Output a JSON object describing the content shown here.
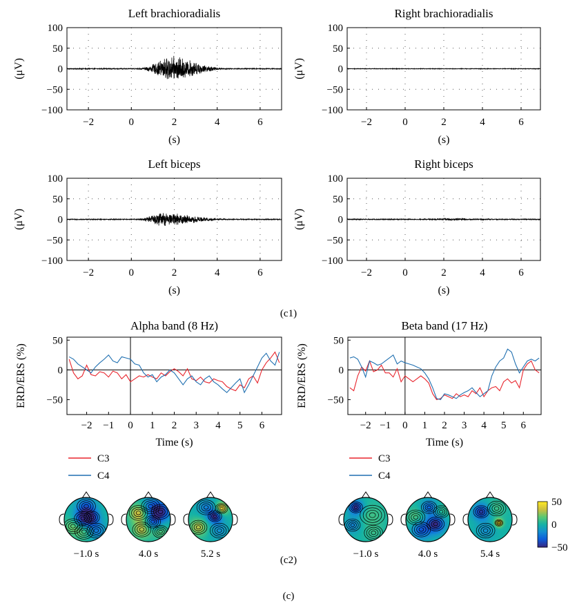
{
  "captions": {
    "c1": "(c1)",
    "c2": "(c2)",
    "c": "(c)"
  },
  "chart_data": [
    {
      "type": "line",
      "title": "Left brachioradialis",
      "xlabel": "(s)",
      "ylabel": "(μV)",
      "xlim": [
        -3,
        7
      ],
      "ylim": [
        -100,
        100
      ],
      "xticks": [
        "−2",
        "0",
        "2",
        "4",
        "6"
      ],
      "yticks": [
        "100",
        "50",
        "0",
        "−50",
        "−100"
      ],
      "grid": true,
      "series": [
        {
          "signal": "emg",
          "burst_start_s": 0.3,
          "burst_end_s": 4.5,
          "peak_s": 1.9,
          "peak_amplitude_uV": 32,
          "baseline_uV": 1
        }
      ]
    },
    {
      "type": "line",
      "title": "Right brachioradialis",
      "xlabel": "(s)",
      "ylabel": "(μV)",
      "xlim": [
        -3,
        7
      ],
      "ylim": [
        -100,
        100
      ],
      "xticks": [
        "−2",
        "0",
        "2",
        "4",
        "6"
      ],
      "yticks": [
        "100",
        "50",
        "0",
        "−50",
        "−100"
      ],
      "grid": true,
      "series": [
        {
          "signal": "emg",
          "burst_start_s": 0,
          "burst_end_s": 0,
          "peak_s": 0,
          "peak_amplitude_uV": 0,
          "baseline_uV": 0.6
        }
      ]
    },
    {
      "type": "line",
      "title": "Left biceps",
      "xlabel": "(s)",
      "ylabel": "(μV)",
      "xlim": [
        -3,
        7
      ],
      "ylim": [
        -100,
        100
      ],
      "xticks": [
        "−2",
        "0",
        "2",
        "4",
        "6"
      ],
      "yticks": [
        "100",
        "50",
        "0",
        "−50",
        "−100"
      ],
      "grid": true,
      "series": [
        {
          "signal": "emg",
          "burst_start_s": 0.2,
          "burst_end_s": 4.8,
          "peak_s": 1.4,
          "peak_amplitude_uV": 17,
          "baseline_uV": 1
        }
      ]
    },
    {
      "type": "line",
      "title": "Right biceps",
      "xlabel": "(s)",
      "ylabel": "(μV)",
      "xlim": [
        -3,
        7
      ],
      "ylim": [
        -100,
        100
      ],
      "xticks": [
        "−2",
        "0",
        "2",
        "4",
        "6"
      ],
      "yticks": [
        "100",
        "50",
        "0",
        "−50",
        "−100"
      ],
      "grid": true,
      "series": [
        {
          "signal": "emg",
          "burst_start_s": 0.5,
          "burst_end_s": 5,
          "peak_s": 2.2,
          "peak_amplitude_uV": 3,
          "baseline_uV": 1
        }
      ]
    },
    {
      "type": "line",
      "title": "Alpha band (8 Hz)",
      "xlabel": "Time (s)",
      "ylabel": "ERD/ERS (%)",
      "xlim": [
        -2.9,
        6.9
      ],
      "ylim": [
        -75,
        55
      ],
      "xticks": [
        "−2",
        "−1",
        "0",
        "1",
        "2",
        "3",
        "4",
        "5",
        "6"
      ],
      "yticks": [
        "50",
        "0",
        "−50"
      ],
      "grid": false,
      "x": [
        -2.8,
        -2.6,
        -2.4,
        -2.2,
        -2.0,
        -1.8,
        -1.6,
        -1.4,
        -1.2,
        -1.0,
        -0.8,
        -0.6,
        -0.4,
        -0.2,
        0.0,
        0.2,
        0.4,
        0.6,
        0.8,
        1.0,
        1.2,
        1.4,
        1.6,
        1.8,
        2.0,
        2.2,
        2.4,
        2.6,
        2.8,
        3.0,
        3.2,
        3.4,
        3.6,
        3.8,
        4.0,
        4.2,
        4.4,
        4.6,
        4.8,
        5.0,
        5.2,
        5.4,
        5.6,
        5.8,
        6.0,
        6.2,
        6.4,
        6.6,
        6.8
      ],
      "series": [
        {
          "name": "C3",
          "color": "#e8242c",
          "values": [
            18,
            -5,
            -15,
            -10,
            8,
            -8,
            -10,
            -3,
            -5,
            -12,
            -2,
            -5,
            -15,
            -8,
            -20,
            -15,
            -10,
            -12,
            -8,
            -12,
            -15,
            -5,
            -10,
            -3,
            2,
            -3,
            -10,
            2,
            -15,
            -18,
            -12,
            -20,
            -22,
            -15,
            -18,
            -20,
            -28,
            -32,
            -35,
            -25,
            -30,
            -15,
            -10,
            -22,
            0,
            12,
            20,
            30,
            12
          ]
        },
        {
          "name": "C4",
          "color": "#1f6fb0",
          "values": [
            22,
            18,
            10,
            5,
            0,
            -5,
            5,
            12,
            18,
            25,
            15,
            12,
            22,
            20,
            18,
            10,
            8,
            -5,
            -12,
            -8,
            -20,
            -12,
            -8,
            0,
            -5,
            -15,
            -25,
            -15,
            -10,
            -20,
            -25,
            -15,
            -10,
            -20,
            -25,
            -32,
            -38,
            -30,
            -22,
            -15,
            -38,
            -25,
            -10,
            5,
            20,
            28,
            15,
            8,
            30
          ]
        }
      ]
    },
    {
      "type": "line",
      "title": "Beta band (17 Hz)",
      "xlabel": "Time (s)",
      "ylabel": "ERD/ERS (%)",
      "xlim": [
        -2.9,
        6.9
      ],
      "ylim": [
        -75,
        55
      ],
      "xticks": [
        "−2",
        "−1",
        "0",
        "1",
        "2",
        "3",
        "4",
        "5",
        "6"
      ],
      "yticks": [
        "50",
        "0",
        "−50"
      ],
      "grid": false,
      "x": [
        -2.8,
        -2.6,
        -2.4,
        -2.2,
        -2.0,
        -1.8,
        -1.6,
        -1.4,
        -1.2,
        -1.0,
        -0.8,
        -0.6,
        -0.4,
        -0.2,
        0.0,
        0.2,
        0.4,
        0.6,
        0.8,
        1.0,
        1.2,
        1.4,
        1.6,
        1.8,
        2.0,
        2.2,
        2.4,
        2.6,
        2.8,
        3.0,
        3.2,
        3.4,
        3.6,
        3.8,
        4.0,
        4.2,
        4.4,
        4.6,
        4.8,
        5.0,
        5.2,
        5.4,
        5.6,
        5.8,
        6.0,
        6.2,
        6.4,
        6.6,
        6.8
      ],
      "series": [
        {
          "name": "C3",
          "color": "#e8242c",
          "values": [
            -30,
            -35,
            -10,
            5,
            -2,
            15,
            -3,
            0,
            8,
            -5,
            -5,
            -12,
            2,
            -20,
            -10,
            -15,
            -20,
            -15,
            -10,
            -15,
            -22,
            -40,
            -50,
            -48,
            -42,
            -45,
            -48,
            -40,
            -45,
            -42,
            -45,
            -35,
            -40,
            -30,
            -45,
            -35,
            -30,
            -28,
            -35,
            -20,
            -15,
            -22,
            -18,
            -30,
            0,
            10,
            15,
            0,
            -5
          ]
        },
        {
          "name": "C4",
          "color": "#1f6fb0",
          "values": [
            20,
            22,
            18,
            5,
            -12,
            15,
            12,
            8,
            10,
            15,
            20,
            25,
            10,
            15,
            12,
            10,
            8,
            5,
            2,
            -5,
            -15,
            -30,
            -48,
            -50,
            -40,
            -42,
            -45,
            -48,
            -42,
            -38,
            -35,
            -30,
            -38,
            -45,
            -40,
            -35,
            -10,
            5,
            15,
            20,
            35,
            30,
            10,
            -5,
            5,
            15,
            18,
            15,
            20
          ]
        }
      ]
    }
  ],
  "legends": [
    {
      "items": [
        {
          "name": "C3",
          "color": "#e8242c"
        },
        {
          "name": "C4",
          "color": "#1f6fb0"
        }
      ]
    },
    {
      "items": [
        {
          "name": "C3",
          "color": "#e8242c"
        },
        {
          "name": "C4",
          "color": "#1f6fb0"
        }
      ]
    }
  ],
  "topomaps": {
    "colorbar": {
      "ticks": [
        "50",
        "0",
        "−50"
      ],
      "range": [
        -50,
        50
      ],
      "colormap": "parula"
    },
    "alpha": [
      {
        "label": "−1.0 s",
        "blobs": [
          [
            -0.15,
            0.05,
            -1.0,
            0.28
          ],
          [
            0.25,
            0.1,
            -0.7,
            0.25
          ],
          [
            0.0,
            0.6,
            -0.6,
            0.3
          ],
          [
            0.45,
            -0.5,
            -0.5,
            0.3
          ],
          [
            -0.6,
            -0.3,
            0.4,
            0.3
          ],
          [
            -0.1,
            -0.55,
            0.3,
            0.3
          ]
        ]
      },
      {
        "label": "4.0 s",
        "blobs": [
          [
            -0.45,
            0.3,
            0.7,
            0.3
          ],
          [
            0.55,
            0.35,
            -1.0,
            0.3
          ],
          [
            -0.3,
            -0.45,
            0.6,
            0.3
          ],
          [
            0.2,
            -0.1,
            -0.6,
            0.25
          ],
          [
            0.1,
            0.6,
            -0.5,
            0.3
          ],
          [
            0.55,
            -0.55,
            0.3,
            0.25
          ]
        ]
      },
      {
        "label": "5.2 s",
        "blobs": [
          [
            0.5,
            0.5,
            0.9,
            0.2
          ],
          [
            0.2,
            0.15,
            -1.0,
            0.22
          ],
          [
            -0.55,
            -0.35,
            0.6,
            0.28
          ],
          [
            -0.2,
            0.55,
            -0.4,
            0.3
          ],
          [
            0.4,
            -0.5,
            -0.3,
            0.3
          ]
        ]
      }
    ],
    "beta": [
      {
        "label": "−1.0 s",
        "blobs": [
          [
            -0.45,
            0.55,
            -1.0,
            0.22
          ],
          [
            -0.6,
            -0.25,
            -0.4,
            0.25
          ],
          [
            0.3,
            0.2,
            0.2,
            0.4
          ],
          [
            0.35,
            -0.6,
            0.15,
            0.3
          ]
        ]
      },
      {
        "label": "4.0 s",
        "blobs": [
          [
            0.05,
            0.55,
            -0.6,
            0.25
          ],
          [
            0.35,
            -0.2,
            -1.0,
            0.28
          ],
          [
            -0.3,
            -0.45,
            -0.7,
            0.3
          ],
          [
            -0.55,
            0.1,
            0.3,
            0.3
          ],
          [
            0.6,
            0.35,
            0.2,
            0.25
          ]
        ]
      },
      {
        "label": "5.4 s",
        "blobs": [
          [
            0.4,
            -0.15,
            1.0,
            0.13
          ],
          [
            -0.4,
            0.35,
            -0.9,
            0.25
          ],
          [
            -0.2,
            -0.5,
            -0.3,
            0.3
          ],
          [
            0.3,
            0.5,
            0.2,
            0.3
          ]
        ]
      }
    ]
  }
}
